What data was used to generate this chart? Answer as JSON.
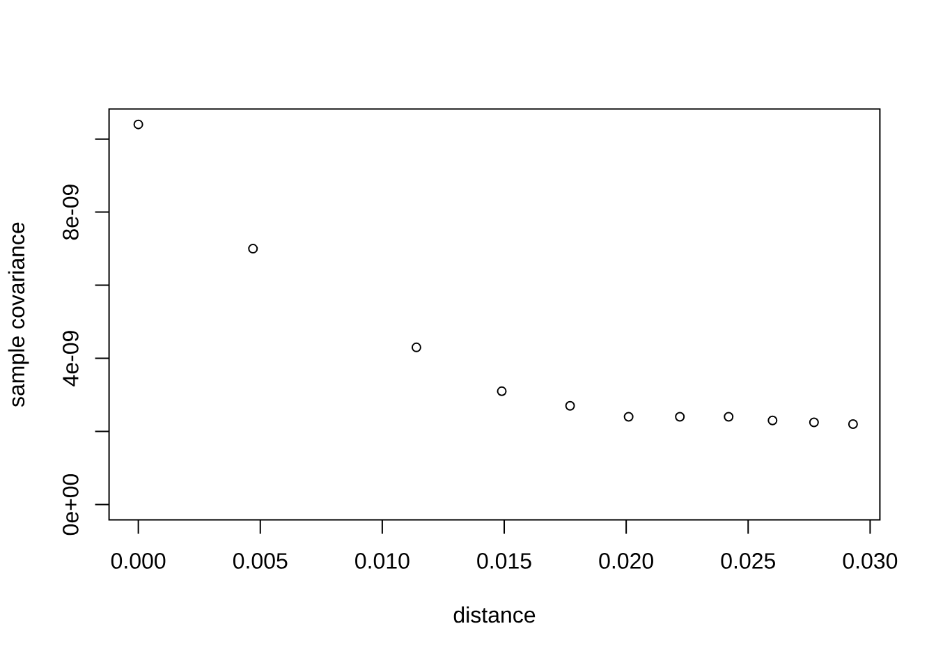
{
  "chart_data": {
    "type": "scatter",
    "xlabel": "distance",
    "ylabel": "sample covariance",
    "x": [
      0,
      0.0047,
      0.0114,
      0.0149,
      0.0177,
      0.0201,
      0.0222,
      0.0242,
      0.026,
      0.0277,
      0.0293
    ],
    "values": [
      1.04e-08,
      7e-09,
      4.3e-09,
      3.1e-09,
      2.7e-09,
      2.4e-09,
      2.4e-09,
      2.4e-09,
      2.3e-09,
      2.25e-09,
      2.2e-09
    ],
    "color": "#000000",
    "marker": "circle",
    "xlim": [
      -0.0012,
      0.0304
    ],
    "ylim": [
      -4.2e-10,
      1.082e-08
    ],
    "xticks": [
      {
        "value": 0,
        "label": "0.000"
      },
      {
        "value": 0.005,
        "label": "0.005"
      },
      {
        "value": 0.01,
        "label": "0.010"
      },
      {
        "value": 0.015,
        "label": "0.015"
      },
      {
        "value": 0.02,
        "label": "0.020"
      },
      {
        "value": 0.025,
        "label": "0.025"
      },
      {
        "value": 0.03,
        "label": "0.030"
      }
    ],
    "yticks": [
      {
        "value": 0,
        "label": "0e+00"
      },
      {
        "value": 2e-09,
        "label": null
      },
      {
        "value": 4e-09,
        "label": "4e-09"
      },
      {
        "value": 6e-09,
        "label": null
      },
      {
        "value": 8e-09,
        "label": "8e-09"
      },
      {
        "value": 1e-08,
        "label": null
      }
    ]
  }
}
